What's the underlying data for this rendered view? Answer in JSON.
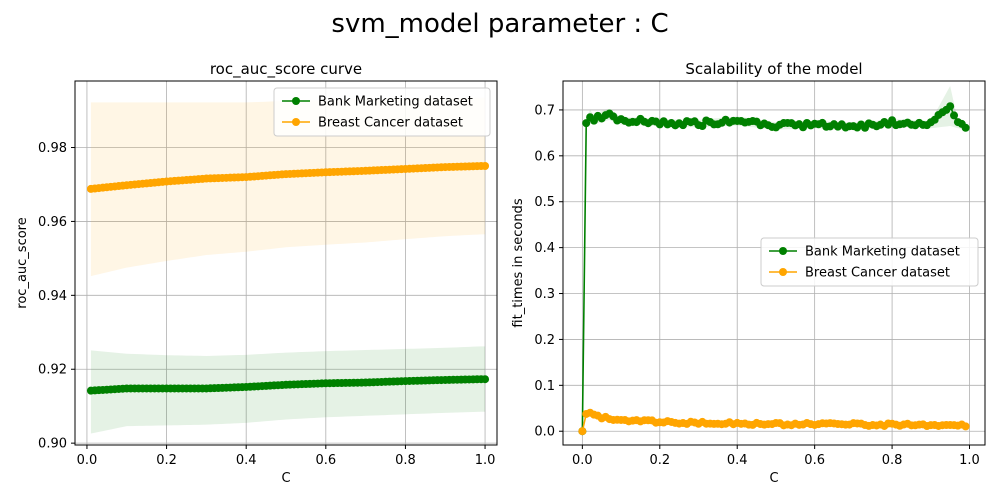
{
  "figure": {
    "suptitle": "svm_model parameter : C"
  },
  "chart_data": [
    {
      "type": "line",
      "title": "roc_auc_score curve",
      "xlabel": "C",
      "ylabel": "roc_auc_score",
      "xlim": [
        -0.03,
        1.03
      ],
      "ylim": [
        0.8995,
        0.998
      ],
      "xticks": [
        0.0,
        0.2,
        0.4,
        0.6,
        0.8,
        1.0
      ],
      "xtick_labels": [
        "0.0",
        "0.2",
        "0.4",
        "0.6",
        "0.8",
        "1.0"
      ],
      "yticks": [
        0.9,
        0.92,
        0.94,
        0.96,
        0.98
      ],
      "ytick_labels": [
        "0.90",
        "0.92",
        "0.94",
        "0.96",
        "0.98"
      ],
      "grid": true,
      "legend_position": "upper right",
      "series": [
        {
          "name": "Bank Marketing dataset",
          "color": "#008000",
          "band_alpha": 0.1,
          "points": [
            [
              0.01,
              0.9142,
              0.9026,
              0.9251
            ],
            [
              0.1,
              0.9148,
              0.9046,
              0.9242
            ],
            [
              0.2,
              0.9148,
              0.9048,
              0.9238
            ],
            [
              0.3,
              0.9148,
              0.905,
              0.9236
            ],
            [
              0.4,
              0.9152,
              0.9055,
              0.9239
            ],
            [
              0.5,
              0.9158,
              0.9064,
              0.9245
            ],
            [
              0.6,
              0.9162,
              0.907,
              0.9249
            ],
            [
              0.7,
              0.9164,
              0.9074,
              0.9252
            ],
            [
              0.8,
              0.9168,
              0.9078,
              0.9255
            ],
            [
              0.9,
              0.9171,
              0.9082,
              0.9258
            ],
            [
              0.99,
              0.9173,
              0.9085,
              0.9262
            ]
          ]
        },
        {
          "name": "Breast Cancer dataset",
          "color": "#FFA500",
          "band_alpha": 0.1,
          "points": [
            [
              0.01,
              0.9688,
              0.9452,
              0.9922
            ],
            [
              0.1,
              0.9698,
              0.9475,
              0.9922
            ],
            [
              0.2,
              0.9708,
              0.9493,
              0.9922
            ],
            [
              0.3,
              0.9716,
              0.9509,
              0.9922
            ],
            [
              0.4,
              0.972,
              0.9518,
              0.9922
            ],
            [
              0.5,
              0.9728,
              0.953,
              0.9926
            ],
            [
              0.6,
              0.9733,
              0.9537,
              0.9929
            ],
            [
              0.7,
              0.9737,
              0.9543,
              0.9931
            ],
            [
              0.8,
              0.9742,
              0.9552,
              0.9932
            ],
            [
              0.9,
              0.9747,
              0.956,
              0.9934
            ],
            [
              0.99,
              0.975,
              0.9565,
              0.9935
            ]
          ]
        }
      ]
    },
    {
      "type": "line",
      "title": "Scalability of the model",
      "xlabel": "C",
      "ylabel": "fit_times in seconds",
      "xlim": [
        -0.05,
        1.04
      ],
      "ylim": [
        -0.03,
        0.763
      ],
      "xticks": [
        0.0,
        0.2,
        0.4,
        0.6,
        0.8,
        1.0
      ],
      "xtick_labels": [
        "0.0",
        "0.2",
        "0.4",
        "0.6",
        "0.8",
        "1.0"
      ],
      "yticks": [
        0.0,
        0.1,
        0.2,
        0.3,
        0.4,
        0.5,
        0.6,
        0.7
      ],
      "ytick_labels": [
        "0.0",
        "0.1",
        "0.2",
        "0.3",
        "0.4",
        "0.5",
        "0.6",
        "0.7"
      ],
      "grid": true,
      "legend_position": "center right",
      "series": [
        {
          "name": "Bank Marketing dataset",
          "color": "#008000",
          "band_alpha": 0.1,
          "points": [
            [
              0.0,
              0.0,
              0.0,
              0.0
            ],
            [
              0.01,
              0.672,
              0.662,
              0.682
            ],
            [
              0.02,
              0.688,
              0.676,
              0.7
            ],
            [
              0.03,
              0.678,
              0.668,
              0.688
            ],
            [
              0.05,
              0.686,
              0.674,
              0.698
            ],
            [
              0.07,
              0.69,
              0.678,
              0.702
            ],
            [
              0.1,
              0.676,
              0.668,
              0.684
            ],
            [
              0.15,
              0.675,
              0.667,
              0.683
            ],
            [
              0.2,
              0.672,
              0.664,
              0.68
            ],
            [
              0.3,
              0.67,
              0.662,
              0.678
            ],
            [
              0.4,
              0.676,
              0.666,
              0.686
            ],
            [
              0.5,
              0.665,
              0.657,
              0.673
            ],
            [
              0.6,
              0.668,
              0.66,
              0.676
            ],
            [
              0.7,
              0.664,
              0.656,
              0.672
            ],
            [
              0.8,
              0.672,
              0.664,
              0.68
            ],
            [
              0.9,
              0.668,
              0.66,
              0.676
            ],
            [
              0.95,
              0.708,
              0.665,
              0.752
            ],
            [
              0.97,
              0.668,
              0.66,
              0.676
            ],
            [
              0.99,
              0.666,
              0.658,
              0.674
            ]
          ]
        },
        {
          "name": "Breast Cancer dataset",
          "color": "#FFA500",
          "band_alpha": 0.1,
          "points": [
            [
              0.0,
              0.0,
              0.0,
              0.0
            ],
            [
              0.01,
              0.035,
              0.03,
              0.04
            ],
            [
              0.02,
              0.04,
              0.034,
              0.046
            ],
            [
              0.05,
              0.03,
              0.025,
              0.035
            ],
            [
              0.1,
              0.024,
              0.02,
              0.028
            ],
            [
              0.2,
              0.02,
              0.016,
              0.024
            ],
            [
              0.3,
              0.018,
              0.014,
              0.022
            ],
            [
              0.4,
              0.017,
              0.013,
              0.021
            ],
            [
              0.5,
              0.016,
              0.012,
              0.02
            ],
            [
              0.6,
              0.015,
              0.011,
              0.019
            ],
            [
              0.7,
              0.015,
              0.011,
              0.019
            ],
            [
              0.8,
              0.014,
              0.01,
              0.018
            ],
            [
              0.9,
              0.014,
              0.01,
              0.018
            ],
            [
              0.99,
              0.013,
              0.009,
              0.017
            ]
          ]
        }
      ]
    }
  ]
}
